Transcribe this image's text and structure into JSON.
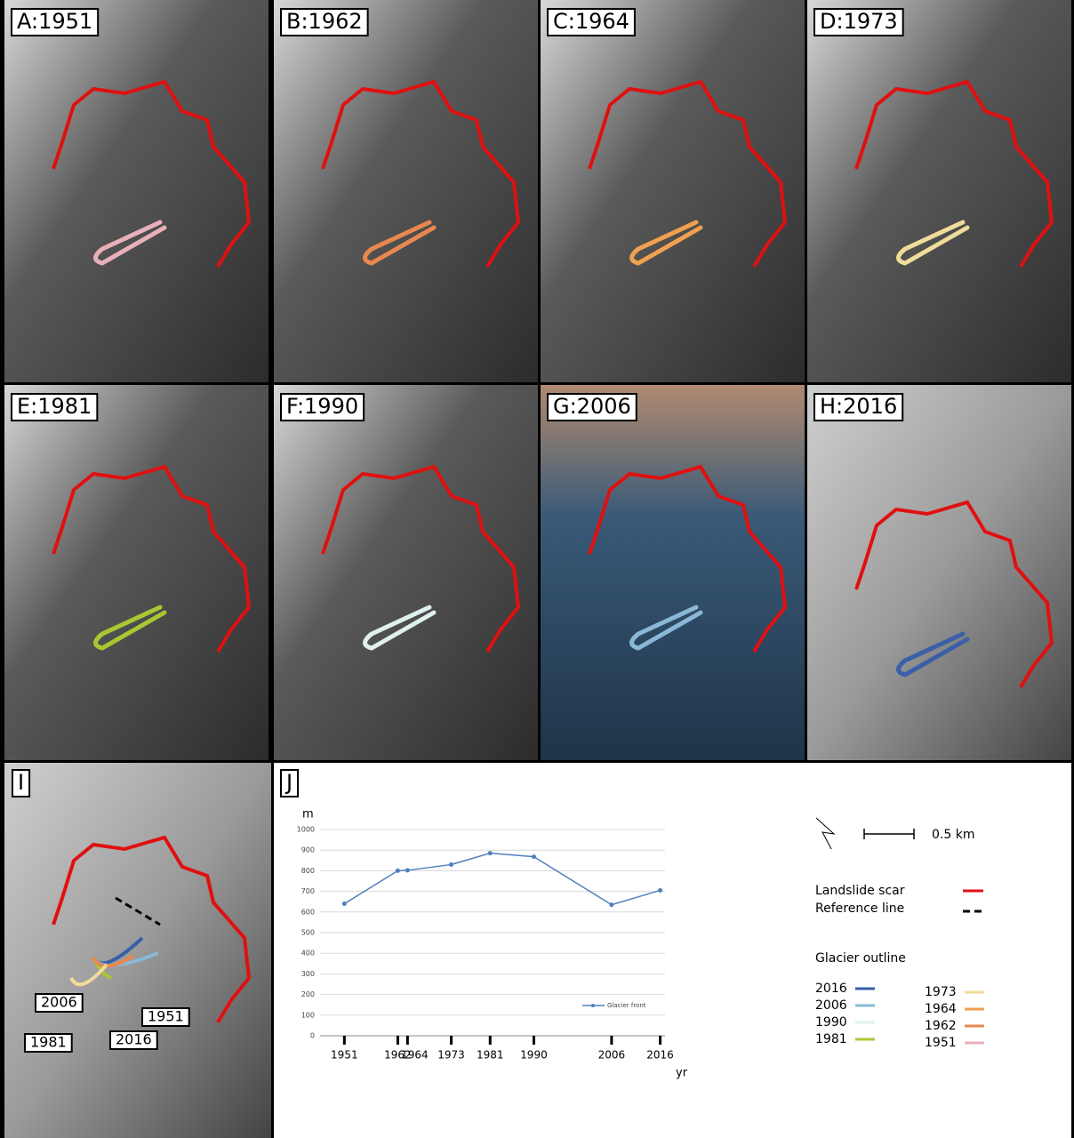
{
  "panels": [
    {
      "label": "A:1951",
      "color": "#e8b0b8"
    },
    {
      "label": "B:1962",
      "color": "#e8884f"
    },
    {
      "label": "C:1964",
      "color": "#f0a050"
    },
    {
      "label": "D:1973",
      "color": "#f0dc9a"
    },
    {
      "label": "E:1981",
      "color": "#a8c832"
    },
    {
      "label": "F:1990",
      "color": "#dff0ee"
    },
    {
      "label": "G:2006",
      "color": "#8ab8d6"
    },
    {
      "label": "H:2016",
      "color": "#3a5fa8"
    }
  ],
  "panel_i": {
    "label": "I",
    "outline_labels": [
      "2006",
      "1951",
      "1981",
      "2016"
    ]
  },
  "chart_data": {
    "type": "line",
    "label": "J",
    "y_label": "m",
    "x_label": "yr",
    "x": [
      1951,
      1962,
      1964,
      1973,
      1981,
      1990,
      2006,
      2016
    ],
    "series": [
      {
        "name": "Glacier front",
        "color": "#4f81bd",
        "values": [
          640,
          800,
          802,
          830,
          885,
          868,
          635,
          705
        ]
      }
    ],
    "xlim": [
      1946,
      2017
    ],
    "xticks": [
      1951,
      1962,
      1964,
      1973,
      1981,
      1990,
      2006,
      2016
    ],
    "ylim": [
      0,
      1000
    ],
    "yticks": [
      0,
      100,
      200,
      300,
      400,
      500,
      600,
      700,
      800,
      900,
      1000
    ],
    "grid": true
  },
  "legend": {
    "scale": "0.5 km",
    "scar": {
      "name": "Landslide scar",
      "color": "#e01010"
    },
    "reference": "Reference line",
    "glacier_title": "Glacier outline",
    "items": [
      {
        "name": "2016",
        "color": "#3a5fa8"
      },
      {
        "name": "2006",
        "color": "#8ab8d6"
      },
      {
        "name": "1990",
        "color": "#dff0ee"
      },
      {
        "name": "1981",
        "color": "#a8c832"
      },
      {
        "name": "1973",
        "color": "#f0dc9a"
      },
      {
        "name": "1964",
        "color": "#f0a050"
      },
      {
        "name": "1962",
        "color": "#e8884f"
      },
      {
        "name": "1951",
        "color": "#e8b0b8"
      }
    ]
  }
}
